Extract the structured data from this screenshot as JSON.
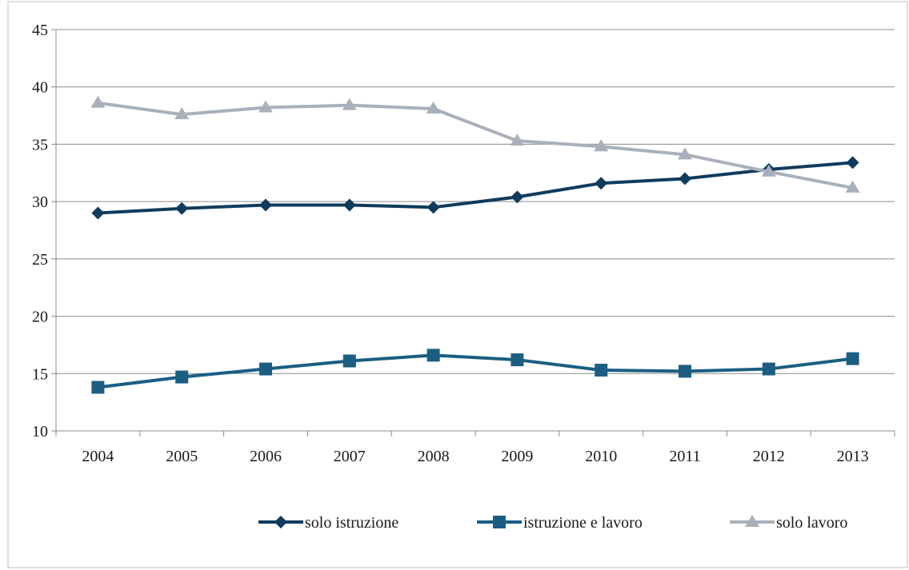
{
  "chart_data": {
    "type": "line",
    "title": "",
    "xlabel": "",
    "ylabel": "",
    "x": [
      "2004",
      "2005",
      "2006",
      "2007",
      "2008",
      "2009",
      "2010",
      "2011",
      "2012",
      "2013"
    ],
    "ylim": [
      10,
      45
    ],
    "yticks": [
      "10",
      "15",
      "20",
      "25",
      "30",
      "35",
      "40",
      "45"
    ],
    "grid": "horizontal",
    "legend_position": "bottom",
    "series": [
      {
        "name": "solo istruzione",
        "marker": "diamond",
        "color": "#0f3b5c",
        "values": [
          29.0,
          29.4,
          29.7,
          29.7,
          29.5,
          30.4,
          31.6,
          32.0,
          32.8,
          33.4
        ]
      },
      {
        "name": "istruzione e lavoro",
        "marker": "square",
        "color": "#1b5e82",
        "values": [
          13.8,
          14.7,
          15.4,
          16.1,
          16.6,
          16.2,
          15.3,
          15.2,
          15.4,
          16.3
        ]
      },
      {
        "name": "solo lavoro",
        "marker": "triangle",
        "color": "#a8b1bb",
        "values": [
          38.6,
          37.6,
          38.2,
          38.4,
          38.1,
          35.3,
          34.8,
          34.1,
          32.6,
          31.2
        ]
      }
    ]
  }
}
